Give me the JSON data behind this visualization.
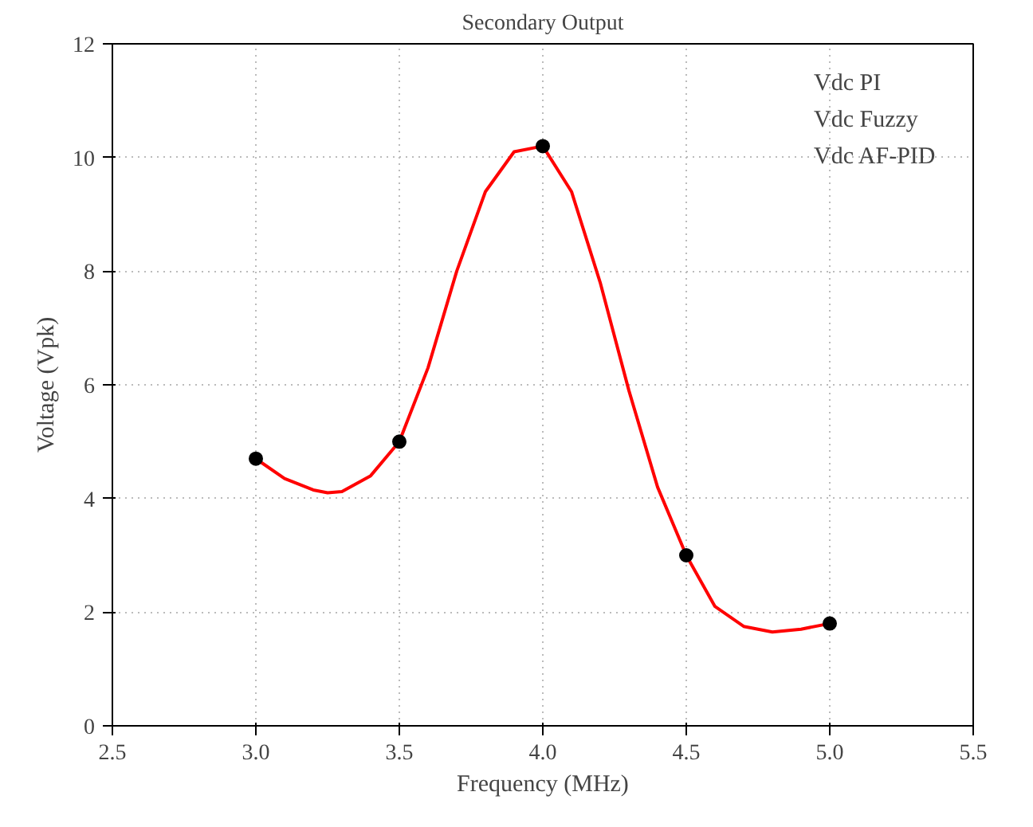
{
  "chart_data": {
    "type": "scatter",
    "title": "Secondary Output",
    "xlabel": "Frequency (MHz)",
    "ylabel": "Voltage (Vpk)",
    "series": [
      {
        "type": "line",
        "marker": "none",
        "color": "#ff0000",
        "x": [
          3.0,
          3.1,
          3.2,
          3.25,
          3.3,
          3.4,
          3.5,
          3.6,
          3.7,
          3.8,
          3.9,
          4.0,
          4.1,
          4.2,
          4.3,
          4.4,
          4.5,
          4.6,
          4.7,
          4.8,
          4.9,
          5.0
        ],
        "values": [
          4.7,
          4.35,
          4.15,
          4.1,
          4.12,
          4.4,
          5.0,
          6.3,
          8.0,
          9.4,
          10.1,
          10.2,
          9.4,
          7.8,
          5.9,
          4.2,
          3.0,
          2.1,
          1.75,
          1.65,
          1.7,
          1.8
        ]
      },
      {
        "marker": "circle",
        "color": "#000000",
        "x": [
          3.0,
          3.5,
          4.0,
          4.5,
          5.0
        ],
        "values": [
          4.7,
          5.0,
          10.2,
          3.0,
          1.8
        ]
      }
    ],
    "xlim": [
      2.5,
      5.5
    ],
    "ylim": [
      0,
      12
    ],
    "xticks": [
      2.5,
      {
        "value": 3,
        "label": "3.0"
      },
      3.5,
      {
        "value": 4,
        "label": "4.0"
      },
      4.5,
      {
        "value": 5,
        "label": "5.0"
      },
      5.5
    ],
    "yticks": [
      0,
      2,
      4,
      6,
      8,
      10,
      12
    ],
    "grid": true,
    "line_style": "solid",
    "annotations": [
      "Vdc PI",
      "Vdc Fuzzy",
      "Vdc AF-PID"
    ]
  }
}
